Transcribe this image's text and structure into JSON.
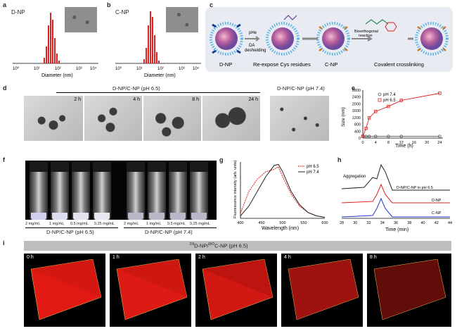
{
  "panels": {
    "a": {
      "label": "a",
      "name": "D-NP",
      "xlabel": "Diameter (nm)",
      "ticks": [
        "10⁰",
        "10¹",
        "10²",
        "10³",
        "10⁴"
      ]
    },
    "b": {
      "label": "b",
      "name": "C-NP",
      "xlabel": "Diameter (nm)",
      "ticks": [
        "10⁰",
        "10¹",
        "10²",
        "10³",
        "10⁴"
      ]
    },
    "c": {
      "label": "c",
      "np1": "D-NP",
      "np2": "C-NP",
      "step1a": "pHe",
      "step1b": "DA",
      "step1c": "deshielding",
      "step2": "Re-expose Cys residues",
      "step3a": "Bioorthogonal",
      "step3b": "reaction",
      "step4": "Covalent crosslinking"
    },
    "d": {
      "label": "d",
      "title1": "D-NP/C-NP (pH 6.5)",
      "title2": "D-NP/C-NP (pH 7.4)",
      "times": [
        "2 h",
        "4 h",
        "8 h",
        "24 h"
      ]
    },
    "e": {
      "label": "e",
      "ylabel": "Size (nm)",
      "xlabel": "Time (h)",
      "legend1": "pH 7.4",
      "legend2": "pH 6.5",
      "yticks": [
        "0",
        "400",
        "800",
        "1200",
        "1600",
        "2000",
        "2400",
        "2800"
      ],
      "xticks": [
        "0",
        "4",
        "8",
        "12",
        "16",
        "20",
        "24"
      ]
    },
    "f": {
      "label": "f",
      "concs": [
        "2 mg/mL",
        "1 mg/mL",
        "0.5 mg/mL",
        "0.25 mg/mL"
      ],
      "group1": "D-NP/C-NP (pH 6.5)",
      "group2": "D-NP/C-NP (pH 7.4)"
    },
    "g": {
      "label": "g",
      "ylabel": "Fluorescence intensity (arb. units)",
      "xlabel": "Wavelength (nm)",
      "legend1": "pH 6.5",
      "legend2": "pH 7.4",
      "xticks": [
        "400",
        "450",
        "500",
        "550",
        "600"
      ]
    },
    "h": {
      "label": "h",
      "annot": "Aggregation",
      "s1": "D-NP/C-NP in pH 6.5",
      "s2": "D-NP",
      "s3": "C-NP",
      "xlabel": "Time (min)",
      "xticks": [
        "28",
        "30",
        "32",
        "34",
        "36",
        "38",
        "40",
        "42",
        "44"
      ]
    },
    "i": {
      "label": "i",
      "title_pre1": "DiI",
      "title_mid": "D-NP/",
      "title_pre2": "DiO",
      "title_post": "C-NP (pH 6.5)",
      "times": [
        "0 h",
        "1 h",
        "2 h",
        "4 h",
        "8 h"
      ]
    }
  },
  "chart_data": [
    {
      "type": "line",
      "panel": "e",
      "x": [
        0,
        1,
        2,
        4,
        8,
        12,
        24
      ],
      "series": [
        {
          "name": "pH 7.4",
          "values": [
            100,
            100,
            100,
            100,
            100,
            100,
            100
          ]
        },
        {
          "name": "pH 6.5",
          "values": [
            100,
            560,
            1180,
            1550,
            1850,
            2200,
            2620
          ]
        }
      ],
      "xlabel": "Time (h)",
      "ylabel": "Size (nm)",
      "xlim": [
        0,
        25
      ],
      "ylim": [
        0,
        2800
      ]
    },
    {
      "type": "line",
      "panel": "g",
      "x": [
        400,
        420,
        440,
        460,
        480,
        490,
        500,
        520,
        540,
        560,
        580,
        600
      ],
      "series": [
        {
          "name": "pH 6.5",
          "values": [
            0.1,
            0.55,
            0.8,
            0.95,
            1.0,
            1.05,
            0.85,
            0.5,
            0.25,
            0.12,
            0.05,
            0.02
          ]
        },
        {
          "name": "pH 7.4",
          "values": [
            0.05,
            0.25,
            0.55,
            0.85,
            1.08,
            1.1,
            0.95,
            0.55,
            0.28,
            0.12,
            0.05,
            0.02
          ]
        }
      ],
      "xlabel": "Wavelength (nm)",
      "xlim": [
        400,
        600
      ]
    }
  ]
}
